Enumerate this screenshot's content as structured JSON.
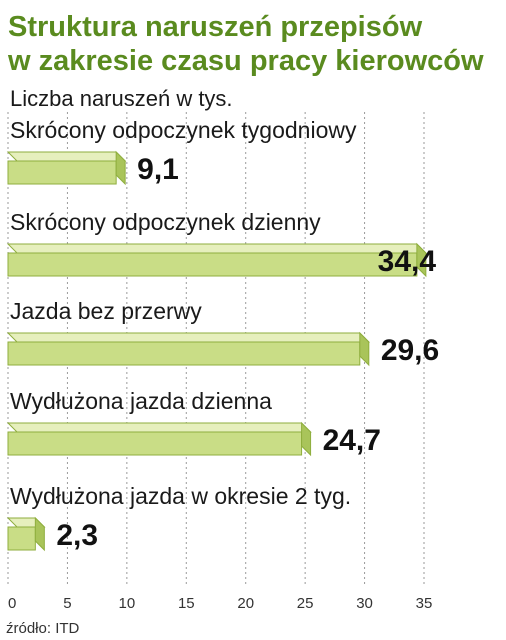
{
  "chart_data": {
    "type": "bar",
    "orientation": "horizontal",
    "title_lines": [
      "Struktura naruszeń przepisów",
      "w zakresie czasu pracy kierowców"
    ],
    "unit_label": "Liczba naruszeń w tys.",
    "categories": [
      "Skrócony odpoczynek tygodniowy",
      "Skrócony odpoczynek dzienny",
      "Jazda bez przerwy",
      "Wydłużona jazda dzienna",
      "Wydłużona jazda w okresie 2 tyg."
    ],
    "values": [
      9.1,
      34.4,
      29.6,
      24.7,
      2.3
    ],
    "value_labels": [
      "9,1",
      "34,4",
      "29,6",
      "24,7",
      "2,3"
    ],
    "xlim": [
      0,
      35
    ],
    "xticks": [
      0,
      5,
      10,
      15,
      20,
      25,
      30,
      35
    ],
    "grid": true,
    "source": "źródło: ITD",
    "colors": {
      "title": "#5a8b1f",
      "bar": "#c9dd86",
      "bar_top": "#e6efbd",
      "bar_side": "#a9c45a"
    }
  }
}
